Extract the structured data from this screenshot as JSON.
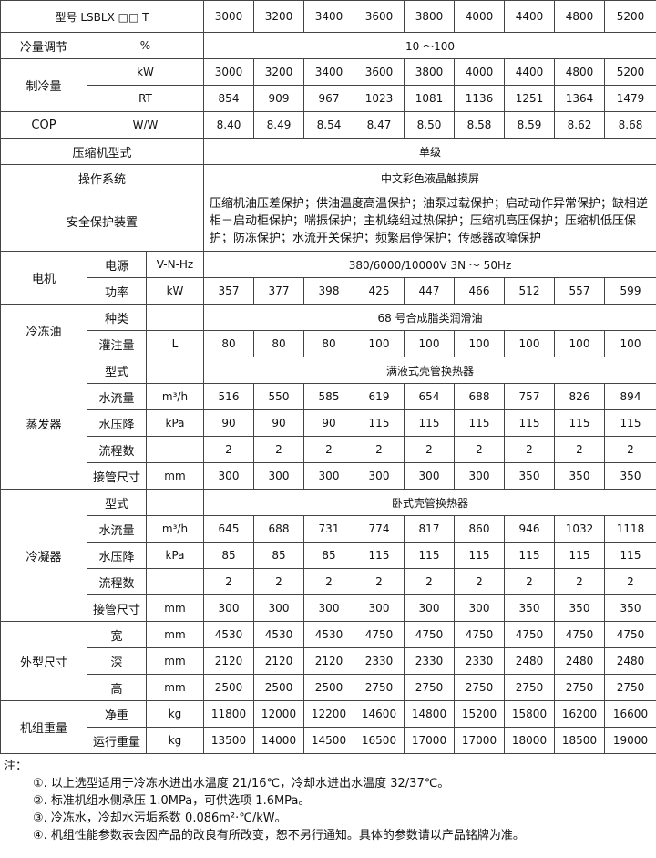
{
  "table": {
    "header": {
      "label": "型号 LSBLX □□ T",
      "models": [
        "3000",
        "3200",
        "3400",
        "3600",
        "3800",
        "4000",
        "4400",
        "4800",
        "5200"
      ]
    },
    "groups": [
      {
        "name": "冷量调节",
        "unit": "%",
        "value": "10 ～100"
      },
      {
        "name": "制冷量",
        "rows": [
          {
            "unit": "kW",
            "values": [
              "3000",
              "3200",
              "3400",
              "3600",
              "3800",
              "4000",
              "4400",
              "4800",
              "5200"
            ]
          },
          {
            "unit": "RT",
            "values": [
              "854",
              "909",
              "967",
              "1023",
              "1081",
              "1136",
              "1251",
              "1364",
              "1479"
            ]
          }
        ]
      },
      {
        "name": "COP",
        "unit": "W/W",
        "values": [
          "8.40",
          "8.49",
          "8.54",
          "8.47",
          "8.50",
          "8.58",
          "8.59",
          "8.62",
          "8.68"
        ]
      },
      {
        "name": "压缩机型式",
        "value": "单级"
      },
      {
        "name": "操作系统",
        "value": "中文彩色液晶触摸屏"
      },
      {
        "name": "安全保护装置",
        "value": "压缩机油压差保护；供油温度高温保护；油泵过载保护；启动动作异常保护；缺相逆相－启动柜保护；喘振保护；主机绕组过热保护；压缩机高压保护；压缩机低压保护；防冻保护；水流开关保护；频繁启停保护；传感器故障保护"
      },
      {
        "name": "电机",
        "rows": [
          {
            "item": "电源",
            "unit": "V-N-Hz",
            "value": "380/6000/10000V 3N ～ 50Hz"
          },
          {
            "item": "功率",
            "unit": "kW",
            "values": [
              "357",
              "377",
              "398",
              "425",
              "447",
              "466",
              "512",
              "557",
              "599"
            ]
          }
        ]
      },
      {
        "name": "冷冻油",
        "rows": [
          {
            "item": "种类",
            "value": "68 号合成脂类润滑油"
          },
          {
            "item": "灌注量",
            "unit": "L",
            "values": [
              "80",
              "80",
              "80",
              "100",
              "100",
              "100",
              "100",
              "100",
              "100"
            ]
          }
        ]
      },
      {
        "name": "蒸发器",
        "rows": [
          {
            "item": "型式",
            "value": "满液式壳管换热器"
          },
          {
            "item": "水流量",
            "unit": "m³/h",
            "values": [
              "516",
              "550",
              "585",
              "619",
              "654",
              "688",
              "757",
              "826",
              "894"
            ]
          },
          {
            "item": "水压降",
            "unit": "kPa",
            "values": [
              "90",
              "90",
              "90",
              "115",
              "115",
              "115",
              "115",
              "115",
              "115"
            ]
          },
          {
            "item": "流程数",
            "values": [
              "2",
              "2",
              "2",
              "2",
              "2",
              "2",
              "2",
              "2",
              "2"
            ]
          },
          {
            "item": "接管尺寸",
            "unit": "mm",
            "values": [
              "300",
              "300",
              "300",
              "300",
              "300",
              "300",
              "350",
              "350",
              "350"
            ]
          }
        ]
      },
      {
        "name": "冷凝器",
        "rows": [
          {
            "item": "型式",
            "value": "卧式壳管换热器"
          },
          {
            "item": "水流量",
            "unit": "m³/h",
            "values": [
              "645",
              "688",
              "731",
              "774",
              "817",
              "860",
              "946",
              "1032",
              "1118"
            ]
          },
          {
            "item": "水压降",
            "unit": "kPa",
            "values": [
              "85",
              "85",
              "85",
              "115",
              "115",
              "115",
              "115",
              "115",
              "115"
            ]
          },
          {
            "item": "流程数",
            "values": [
              "2",
              "2",
              "2",
              "2",
              "2",
              "2",
              "2",
              "2",
              "2"
            ]
          },
          {
            "item": "接管尺寸",
            "unit": "mm",
            "values": [
              "300",
              "300",
              "300",
              "300",
              "300",
              "300",
              "350",
              "350",
              "350"
            ]
          }
        ]
      },
      {
        "name": "外型尺寸",
        "rows": [
          {
            "item": "宽",
            "unit": "mm",
            "values": [
              "4530",
              "4530",
              "4530",
              "4750",
              "4750",
              "4750",
              "4750",
              "4750",
              "4750"
            ]
          },
          {
            "item": "深",
            "unit": "mm",
            "values": [
              "2120",
              "2120",
              "2120",
              "2330",
              "2330",
              "2330",
              "2480",
              "2480",
              "2480"
            ]
          },
          {
            "item": "高",
            "unit": "mm",
            "values": [
              "2500",
              "2500",
              "2500",
              "2750",
              "2750",
              "2750",
              "2750",
              "2750",
              "2750"
            ]
          }
        ]
      },
      {
        "name": "机组重量",
        "rows": [
          {
            "item": "净重",
            "unit": "kg",
            "values": [
              "11800",
              "12000",
              "12200",
              "14600",
              "14800",
              "15200",
              "15800",
              "16200",
              "16600"
            ]
          },
          {
            "item": "运行重量",
            "unit": "kg",
            "values": [
              "13500",
              "14000",
              "14500",
              "16500",
              "17000",
              "17000",
              "18000",
              "18500",
              "19000"
            ]
          }
        ]
      }
    ]
  },
  "notes": {
    "title": "注：",
    "items": [
      "①. 以上选型适用于冷冻水进出水温度 21/16℃，冷却水进出水温度 32/37℃。",
      "②. 标准机组水侧承压 1.0MPa，可供选项 1.6MPa。",
      "③. 冷冻水，冷却水污垢系数 0.086m²·℃/kW。",
      "④. 机组性能参数表会因产品的改良有所改变，恕不另行通知。具体的参数请以产品铭牌为准。"
    ]
  }
}
